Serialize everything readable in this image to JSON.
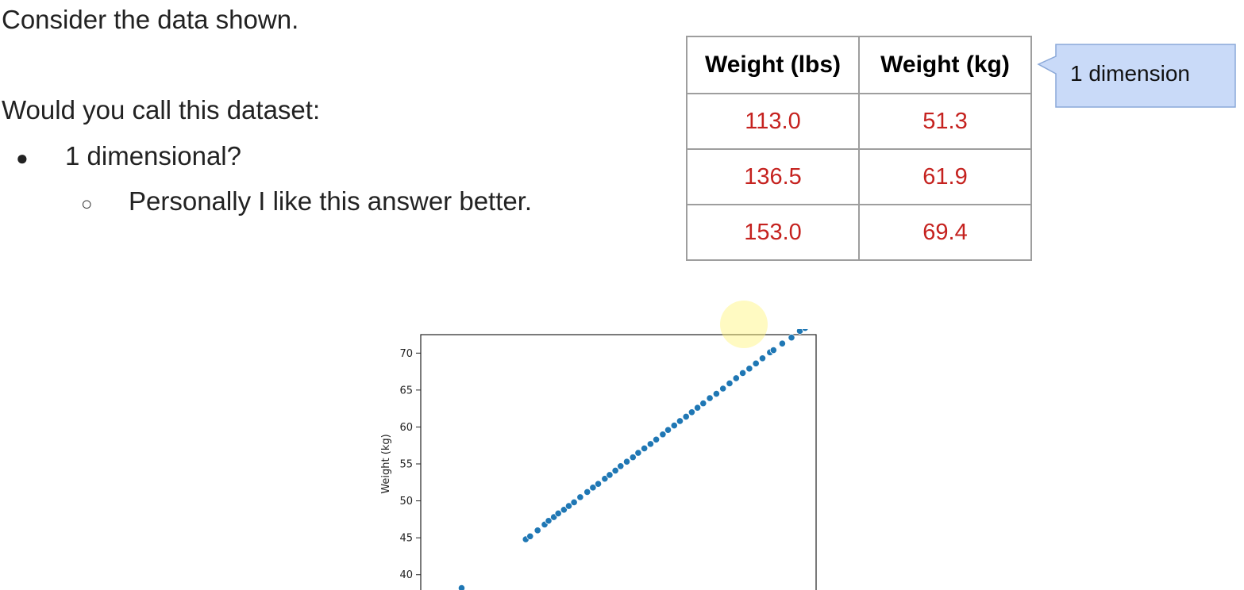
{
  "slide": {
    "intro": "Consider the data shown.",
    "question": "Would you call this dataset:",
    "bullets": [
      {
        "marker": "●",
        "text": "1 dimensional?"
      },
      {
        "marker": "○",
        "text": "Personally I like this answer better."
      }
    ]
  },
  "table": {
    "headers": [
      "Weight (lbs)",
      "Weight (kg)"
    ],
    "rows": [
      [
        "113.0",
        "51.3"
      ],
      [
        "136.5",
        "61.9"
      ],
      [
        "153.0",
        "69.4"
      ]
    ]
  },
  "callout": {
    "text": "1 dimension"
  },
  "chart_data": {
    "type": "scatter",
    "title": "",
    "xlabel": "",
    "ylabel": "Weight (kg)",
    "xlim": [
      75,
      165
    ],
    "ylim": [
      36,
      72.5
    ],
    "yticks": [
      40,
      45,
      50,
      55,
      60,
      65,
      70
    ],
    "grid": false,
    "color": "#1f77b4",
    "x": [
      84.3,
      98.9,
      99.9,
      101.6,
      103.2,
      104.1,
      105.3,
      106.3,
      107.6,
      108.7,
      109.9,
      111.3,
      112.9,
      114.2,
      115.4,
      116.9,
      118.0,
      119.3,
      120.5,
      121.9,
      123.3,
      124.5,
      125.9,
      127.3,
      128.6,
      130.1,
      131.3,
      132.7,
      134.0,
      135.4,
      136.7,
      138.0,
      139.3,
      140.8,
      142.3,
      143.8,
      145.3,
      146.8,
      148.3,
      149.8,
      151.3,
      152.8,
      154.5,
      155.3,
      157.3,
      159.4,
      161.3,
      162.5,
      163.0
    ],
    "y": [
      38.2,
      44.8,
      45.2,
      46.0,
      46.8,
      47.3,
      47.8,
      48.3,
      48.8,
      49.3,
      49.8,
      50.5,
      51.2,
      51.8,
      52.3,
      53.0,
      53.5,
      54.1,
      54.7,
      55.3,
      55.9,
      56.5,
      57.1,
      57.7,
      58.3,
      59.0,
      59.6,
      60.2,
      60.8,
      61.4,
      62.0,
      62.6,
      63.2,
      63.9,
      64.5,
      65.2,
      65.9,
      66.6,
      67.3,
      67.9,
      68.6,
      69.3,
      70.1,
      70.4,
      71.3,
      72.1,
      73.0,
      73.4,
      74.0
    ]
  }
}
